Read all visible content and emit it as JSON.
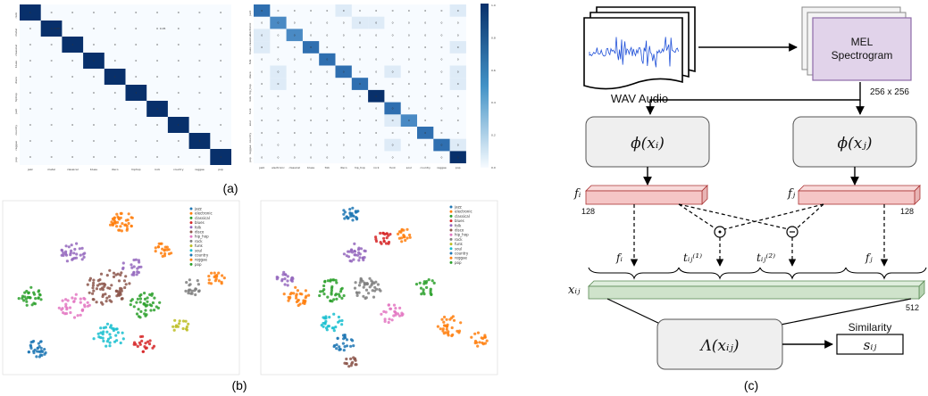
{
  "labels": {
    "a": "(a)",
    "b": "(b)",
    "c": "(c)"
  },
  "genres": [
    "jazz",
    "electronic",
    "classical",
    "blues",
    "folk",
    "disco",
    "hip_hop",
    "rock",
    "funk",
    "soul",
    "country",
    "reggae",
    "pop"
  ],
  "genre_colors": [
    "#1f77b4",
    "#ff7f0e",
    "#2ca02c",
    "#d62728",
    "#9467bd",
    "#8c564b",
    "#e377c2",
    "#7f7f7f",
    "#bcbd22",
    "#17becf",
    "#1f77b4",
    "#ff7f0e",
    "#2ca02c"
  ],
  "heatmap1": {
    "row_labels": [
      "rock",
      "metal",
      "classical",
      "blues",
      "disco",
      "hiphop",
      "jazz",
      "country",
      "reggae",
      "pop"
    ],
    "col_labels": [
      "jazz",
      "metal",
      "classical",
      "blues",
      "disco",
      "hiphop",
      "rock",
      "country",
      "reggae",
      "pop"
    ],
    "diag_value": "1",
    "extra": [
      {
        "r": 1,
        "c": 1,
        "v": "0.95"
      },
      {
        "r": 1,
        "c": 6,
        "v": "0.05"
      }
    ]
  },
  "heatmap2": {
    "row_labels": [
      "jazz",
      "electronic",
      "classical",
      "blues",
      "folk",
      "disco",
      "hip_hop",
      "rock",
      "funk",
      "soul",
      "country",
      "reggae",
      "pop"
    ],
    "col_labels": [
      "jazz",
      "electronic",
      "classical",
      "blues",
      "folk",
      "disco",
      "hip_hop",
      "rock",
      "funk",
      "soul",
      "country",
      "reggae",
      "pop"
    ],
    "colorbar_ticks": [
      "1.0",
      "0.8",
      "0.6",
      "0.4",
      "0.2",
      "0.0"
    ]
  },
  "diagram": {
    "wav_label": "WAV Audio",
    "mel_label_line1": "MEL",
    "mel_label_line2": "Spectrogram",
    "size_label": "256 x 256",
    "phi_left": "ϕ(xᵢ)",
    "phi_right": "ϕ(xⱼ)",
    "fi": "fᵢ",
    "fj": "fⱼ",
    "dim_left": "128",
    "dim_right": "128",
    "odot": "⊙",
    "ominus": "⊖",
    "t1": "tᵢⱼ⁽¹⁾",
    "t2": "tᵢⱼ⁽²⁾",
    "xij": "xᵢⱼ",
    "dim_concat": "512",
    "lambda": "Λ(xᵢⱼ)",
    "similarity_label": "Similarity",
    "sij": "sᵢⱼ"
  }
}
